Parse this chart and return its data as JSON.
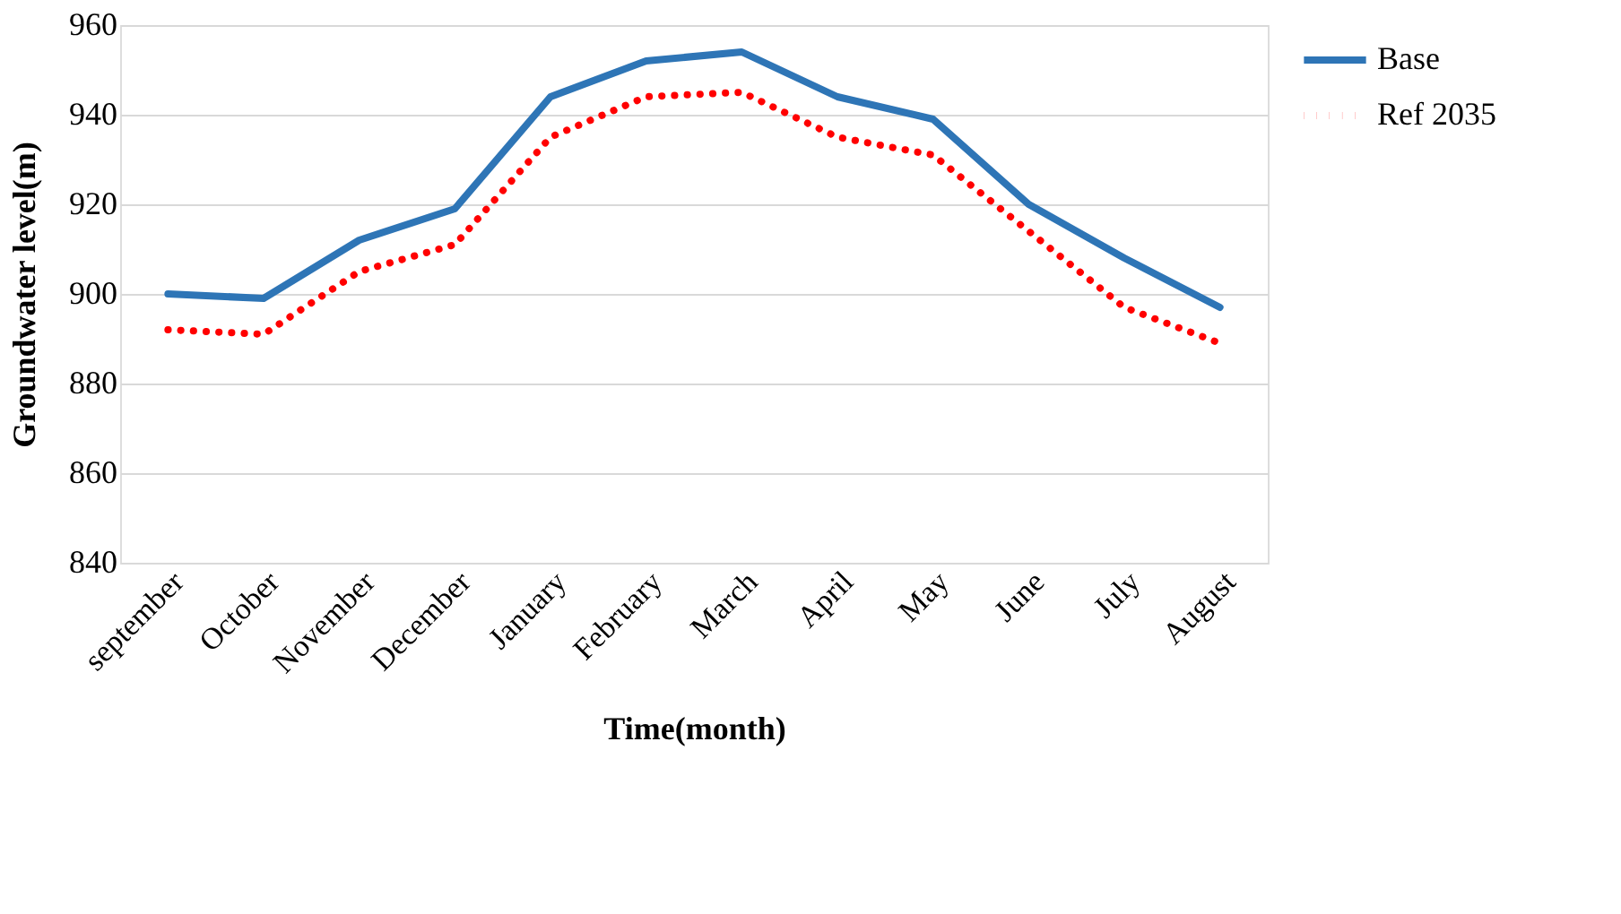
{
  "chart_data": {
    "type": "line",
    "xlabel": "Time(month)",
    "ylabel": "Groundwater level(m)",
    "categories": [
      "september",
      "October",
      "November",
      "December",
      "January",
      "February",
      "March",
      "April",
      "May",
      "June",
      "July",
      "August"
    ],
    "series": [
      {
        "name": "Base",
        "color": "#2e75b6",
        "line_style": "solid",
        "values": [
          900,
          899,
          912,
          919,
          944,
          952,
          954,
          944,
          939,
          920,
          908,
          897
        ]
      },
      {
        "name": "Ref 2035",
        "color": "#ff0000",
        "line_style": "dotted",
        "values": [
          892,
          891,
          905,
          911,
          935,
          944,
          945,
          935,
          931,
          914,
          897,
          889
        ]
      }
    ],
    "ylim": [
      840,
      960
    ],
    "yticks": [
      840,
      860,
      880,
      900,
      920,
      940,
      960
    ],
    "grid": "y",
    "legend": "right",
    "marker": "none"
  }
}
